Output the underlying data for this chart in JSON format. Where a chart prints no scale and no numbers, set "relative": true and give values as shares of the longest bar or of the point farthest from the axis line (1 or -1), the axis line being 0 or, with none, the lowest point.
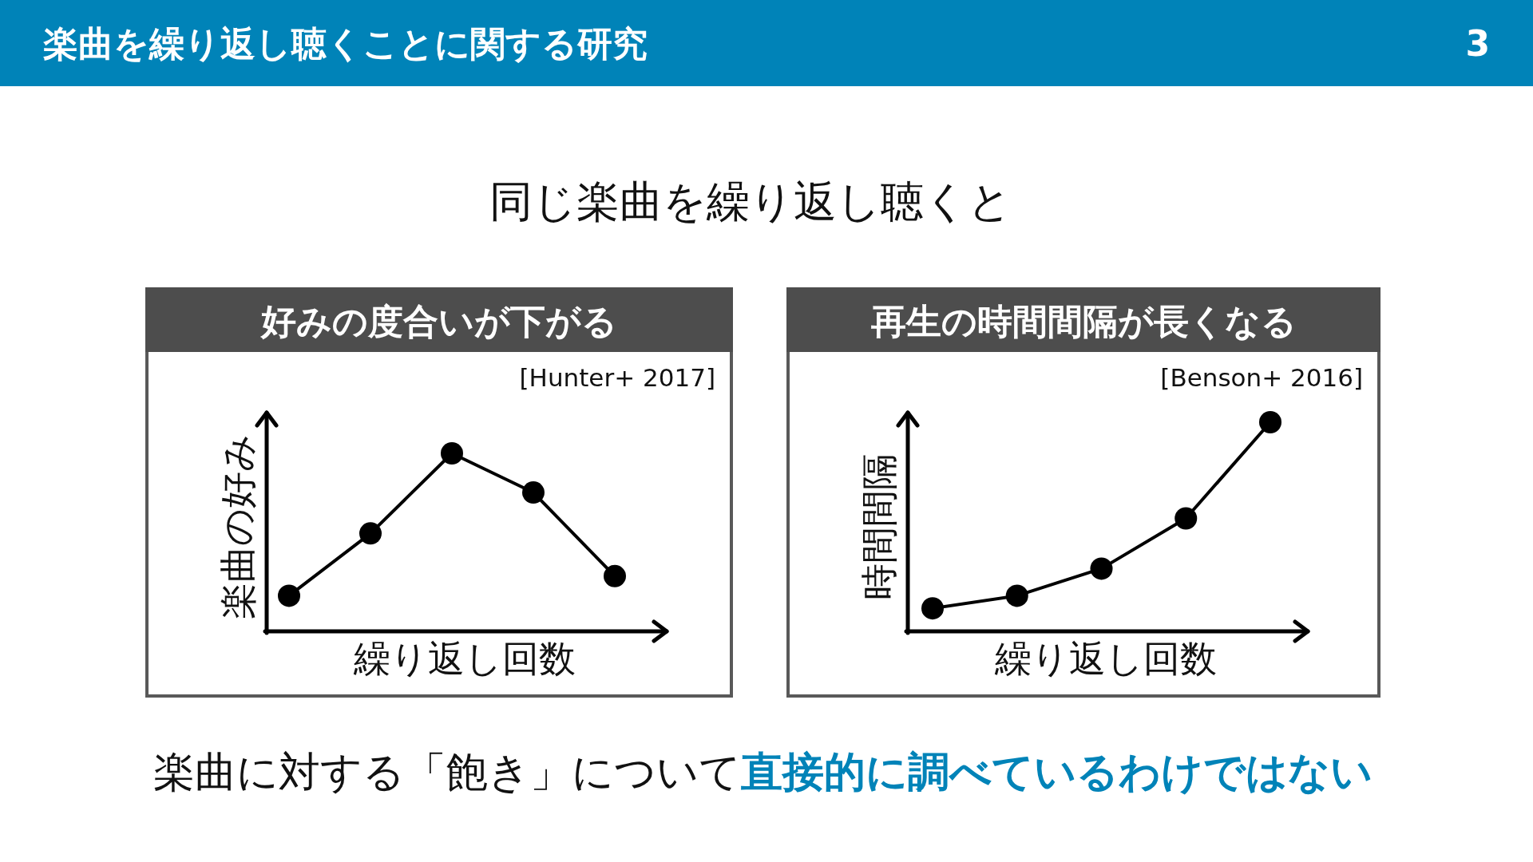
{
  "chart_data": [
    {
      "type": "other",
      "title": "楽曲を繰り返し聴くことに関する研究",
      "subtitle": "同じ楽曲を繰り返し聴くと",
      "annotations": [
        "3",
        "楽曲に対する「飽き」について",
        "直接的に調べているわけではない"
      ]
    },
    {
      "type": "line",
      "title": "好みの度合いが下がる",
      "annotations": [
        "[Hunter+ 2017]"
      ],
      "xlabel": "繰り返し回数",
      "ylabel": "楽曲の好み",
      "categories": [
        null,
        null,
        null,
        null,
        null
      ],
      "values": [
        0.2,
        0.55,
        1,
        0.78,
        0.31
      ],
      "color": "#000000",
      "relative": true,
      "marker": "circle",
      "line_style": "solid"
    },
    {
      "type": "line",
      "title": "再生の時間間隔が長くなる",
      "annotations": [
        "[Benson+ 2016]"
      ],
      "xlabel": "繰り返し回数",
      "ylabel": "時間間隔",
      "categories": [
        null,
        null,
        null,
        null,
        null
      ],
      "values": [
        0.11,
        0.17,
        0.3,
        0.54,
        1
      ],
      "color": "#000000",
      "relative": true,
      "marker": "circle",
      "line_style": "solid"
    }
  ]
}
